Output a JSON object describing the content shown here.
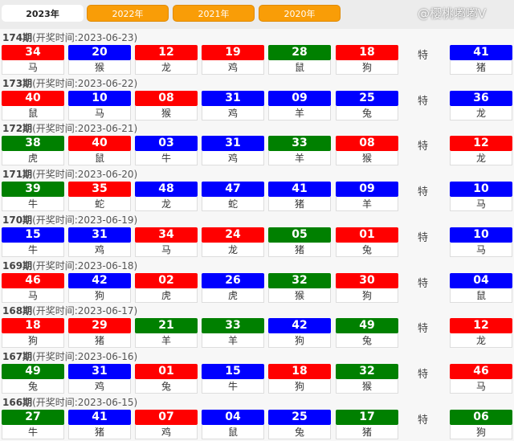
{
  "tabs": [
    "2023年",
    "2022年",
    "2021年",
    "2020年"
  ],
  "active_tab": "2023年",
  "special_label": "特",
  "title_prefix": "开奖时间:",
  "colors": {
    "red": "#ff0000",
    "blue": "#0000ff",
    "green": "#008000"
  },
  "draws": [
    {
      "period": "174期",
      "date": "2023-06-23",
      "numbers": [
        [
          "34",
          "red",
          "马"
        ],
        [
          "20",
          "blue",
          "猴"
        ],
        [
          "12",
          "red",
          "龙"
        ],
        [
          "19",
          "red",
          "鸡"
        ],
        [
          "28",
          "green",
          "鼠"
        ],
        [
          "18",
          "red",
          "狗"
        ]
      ],
      "special": [
        "41",
        "blue",
        "猪"
      ]
    },
    {
      "period": "173期",
      "date": "2023-06-22",
      "numbers": [
        [
          "40",
          "red",
          "鼠"
        ],
        [
          "10",
          "blue",
          "马"
        ],
        [
          "08",
          "red",
          "猴"
        ],
        [
          "31",
          "blue",
          "鸡"
        ],
        [
          "09",
          "blue",
          "羊"
        ],
        [
          "25",
          "blue",
          "兔"
        ]
      ],
      "special": [
        "36",
        "blue",
        "龙"
      ]
    },
    {
      "period": "172期",
      "date": "2023-06-21",
      "numbers": [
        [
          "38",
          "green",
          "虎"
        ],
        [
          "40",
          "red",
          "鼠"
        ],
        [
          "03",
          "blue",
          "牛"
        ],
        [
          "31",
          "blue",
          "鸡"
        ],
        [
          "33",
          "green",
          "羊"
        ],
        [
          "08",
          "red",
          "猴"
        ]
      ],
      "special": [
        "12",
        "red",
        "龙"
      ]
    },
    {
      "period": "171期",
      "date": "2023-06-20",
      "numbers": [
        [
          "39",
          "green",
          "牛"
        ],
        [
          "35",
          "red",
          "蛇"
        ],
        [
          "48",
          "blue",
          "龙"
        ],
        [
          "47",
          "blue",
          "蛇"
        ],
        [
          "41",
          "blue",
          "猪"
        ],
        [
          "09",
          "blue",
          "羊"
        ]
      ],
      "special": [
        "10",
        "blue",
        "马"
      ]
    },
    {
      "period": "170期",
      "date": "2023-06-19",
      "numbers": [
        [
          "15",
          "blue",
          "牛"
        ],
        [
          "31",
          "blue",
          "鸡"
        ],
        [
          "34",
          "red",
          "马"
        ],
        [
          "24",
          "red",
          "龙"
        ],
        [
          "05",
          "green",
          "猪"
        ],
        [
          "01",
          "red",
          "兔"
        ]
      ],
      "special": [
        "10",
        "blue",
        "马"
      ]
    },
    {
      "period": "169期",
      "date": "2023-06-18",
      "numbers": [
        [
          "46",
          "red",
          "马"
        ],
        [
          "42",
          "blue",
          "狗"
        ],
        [
          "02",
          "red",
          "虎"
        ],
        [
          "26",
          "blue",
          "虎"
        ],
        [
          "32",
          "green",
          "猴"
        ],
        [
          "30",
          "red",
          "狗"
        ]
      ],
      "special": [
        "04",
        "blue",
        "鼠"
      ]
    },
    {
      "period": "168期",
      "date": "2023-06-17",
      "numbers": [
        [
          "18",
          "red",
          "狗"
        ],
        [
          "29",
          "red",
          "猪"
        ],
        [
          "21",
          "green",
          "羊"
        ],
        [
          "33",
          "green",
          "羊"
        ],
        [
          "42",
          "blue",
          "狗"
        ],
        [
          "49",
          "green",
          "兔"
        ]
      ],
      "special": [
        "12",
        "red",
        "龙"
      ]
    },
    {
      "period": "167期",
      "date": "2023-06-16",
      "numbers": [
        [
          "49",
          "green",
          "兔"
        ],
        [
          "31",
          "blue",
          "鸡"
        ],
        [
          "01",
          "red",
          "兔"
        ],
        [
          "15",
          "blue",
          "牛"
        ],
        [
          "18",
          "red",
          "狗"
        ],
        [
          "32",
          "green",
          "猴"
        ]
      ],
      "special": [
        "46",
        "red",
        "马"
      ]
    },
    {
      "period": "166期",
      "date": "2023-06-15",
      "numbers": [
        [
          "27",
          "green",
          "牛"
        ],
        [
          "41",
          "blue",
          "猪"
        ],
        [
          "07",
          "red",
          "鸡"
        ],
        [
          "04",
          "blue",
          "鼠"
        ],
        [
          "25",
          "blue",
          "兔"
        ],
        [
          "17",
          "green",
          "猪"
        ]
      ],
      "special": [
        "06",
        "green",
        "狗"
      ]
    }
  ],
  "watermark": "@樱桃嘟嘟V"
}
